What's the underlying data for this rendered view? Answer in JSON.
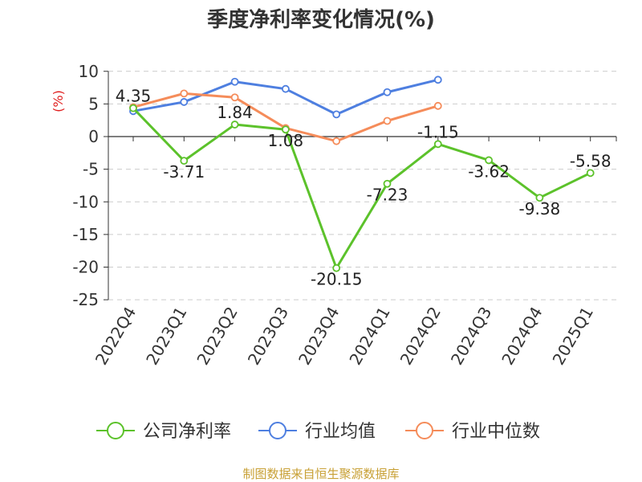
{
  "title": "季度净利率变化情况(%)",
  "source_text": "制图数据来自恒生聚源数据库",
  "chart_data": {
    "type": "line",
    "title": "季度净利率变化情况(%)",
    "ylabel": "(%)",
    "xlabel": "",
    "categories": [
      "2022Q4",
      "2023Q1",
      "2023Q2",
      "2023Q3",
      "2023Q4",
      "2024Q1",
      "2024Q2",
      "2024Q3",
      "2024Q4",
      "2025Q1"
    ],
    "ylim": [
      -25,
      10
    ],
    "yticks": [
      10,
      5,
      0,
      -5,
      -10,
      -15,
      -20,
      -25
    ],
    "grid": true,
    "legend_position": "bottom",
    "series": [
      {
        "name": "公司净利率",
        "color": "#5cc22b",
        "values": [
          4.35,
          -3.71,
          1.84,
          1.08,
          -20.15,
          -7.23,
          -1.15,
          -3.62,
          -9.38,
          -5.58
        ],
        "labels": [
          "4.35",
          "-3.71",
          "1.84",
          "1.08",
          "-20.15",
          "-7.23",
          "-1.15",
          "-3.62",
          "-9.38",
          "-5.58"
        ]
      },
      {
        "name": "行业均值",
        "color": "#4e7fe0",
        "values": [
          3.9,
          5.3,
          8.4,
          7.3,
          3.4,
          6.8,
          8.7,
          null,
          null,
          null
        ]
      },
      {
        "name": "行业中位数",
        "color": "#f58c5a",
        "values": [
          4.5,
          6.6,
          6.0,
          1.3,
          -0.7,
          2.4,
          4.7,
          null,
          null,
          null
        ]
      }
    ]
  }
}
